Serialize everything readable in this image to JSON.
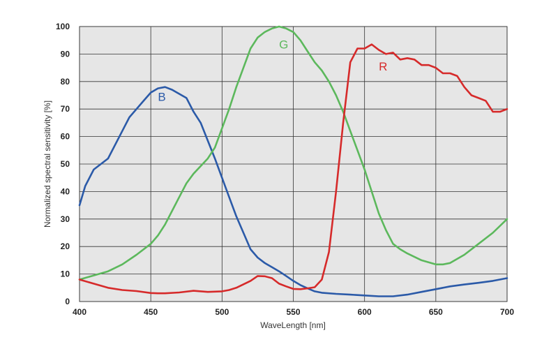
{
  "chart_data": {
    "type": "line",
    "xlabel": "WaveLength [nm]",
    "ylabel": "Normalized spectral sensitivity [%]",
    "xlim": [
      400,
      700
    ],
    "ylim": [
      0,
      100
    ],
    "xticks": [
      400,
      450,
      500,
      550,
      600,
      650,
      700
    ],
    "yticks": [
      0,
      10,
      20,
      30,
      40,
      50,
      60,
      70,
      80,
      90,
      100
    ],
    "grid": true,
    "plot_background": "#e6e6e6",
    "series": [
      {
        "name": "B",
        "color": "#2b5aa8",
        "label_at": [
          455,
          73
        ],
        "points": [
          [
            400,
            35
          ],
          [
            404,
            42
          ],
          [
            410,
            48
          ],
          [
            420,
            52
          ],
          [
            430,
            62
          ],
          [
            435,
            67
          ],
          [
            440,
            70
          ],
          [
            445,
            73
          ],
          [
            450,
            76
          ],
          [
            455,
            77.5
          ],
          [
            460,
            78
          ],
          [
            465,
            77
          ],
          [
            470,
            75.5
          ],
          [
            475,
            74
          ],
          [
            480,
            69
          ],
          [
            485,
            65
          ],
          [
            490,
            58.5
          ],
          [
            495,
            52
          ],
          [
            500,
            45
          ],
          [
            505,
            38
          ],
          [
            510,
            31
          ],
          [
            515,
            25
          ],
          [
            520,
            19
          ],
          [
            525,
            16
          ],
          [
            530,
            14
          ],
          [
            535,
            12.5
          ],
          [
            540,
            11
          ],
          [
            545,
            9.3
          ],
          [
            550,
            7.5
          ],
          [
            555,
            6
          ],
          [
            560,
            4.8
          ],
          [
            565,
            3.7
          ],
          [
            570,
            3.2
          ],
          [
            580,
            2.8
          ],
          [
            590,
            2.5
          ],
          [
            600,
            2.2
          ],
          [
            610,
            1.9
          ],
          [
            620,
            1.9
          ],
          [
            630,
            2.5
          ],
          [
            640,
            3.5
          ],
          [
            650,
            4.5
          ],
          [
            660,
            5.5
          ],
          [
            670,
            6.2
          ],
          [
            680,
            6.8
          ],
          [
            690,
            7.5
          ],
          [
            700,
            8.5
          ]
        ]
      },
      {
        "name": "G",
        "color": "#5cb85c",
        "label_at": [
          540,
          92
        ],
        "points": [
          [
            400,
            8
          ],
          [
            410,
            9.5
          ],
          [
            420,
            11
          ],
          [
            430,
            13.5
          ],
          [
            440,
            17
          ],
          [
            450,
            21
          ],
          [
            455,
            24
          ],
          [
            460,
            28
          ],
          [
            465,
            33
          ],
          [
            470,
            38
          ],
          [
            475,
            43
          ],
          [
            480,
            46.5
          ],
          [
            490,
            52
          ],
          [
            495,
            56
          ],
          [
            500,
            63
          ],
          [
            505,
            70
          ],
          [
            510,
            78
          ],
          [
            515,
            85
          ],
          [
            520,
            92
          ],
          [
            525,
            96
          ],
          [
            530,
            98
          ],
          [
            535,
            99.3
          ],
          [
            540,
            100
          ],
          [
            545,
            99.3
          ],
          [
            550,
            98
          ],
          [
            555,
            95
          ],
          [
            560,
            91
          ],
          [
            565,
            87
          ],
          [
            570,
            84
          ],
          [
            575,
            80
          ],
          [
            580,
            75
          ],
          [
            585,
            69
          ],
          [
            590,
            62
          ],
          [
            595,
            55
          ],
          [
            600,
            48
          ],
          [
            605,
            40
          ],
          [
            610,
            32
          ],
          [
            615,
            26
          ],
          [
            620,
            21
          ],
          [
            625,
            19
          ],
          [
            630,
            17.5
          ],
          [
            640,
            15
          ],
          [
            650,
            13.5
          ],
          [
            655,
            13.5
          ],
          [
            660,
            14
          ],
          [
            670,
            17
          ],
          [
            680,
            21
          ],
          [
            690,
            25
          ],
          [
            700,
            30
          ]
        ]
      },
      {
        "name": "R",
        "color": "#d62a2a",
        "label_at": [
          610,
          84
        ],
        "points": [
          [
            400,
            8
          ],
          [
            410,
            6.5
          ],
          [
            420,
            5
          ],
          [
            430,
            4.2
          ],
          [
            440,
            3.8
          ],
          [
            450,
            3.1
          ],
          [
            455,
            3
          ],
          [
            460,
            3
          ],
          [
            470,
            3.3
          ],
          [
            480,
            3.9
          ],
          [
            490,
            3.5
          ],
          [
            500,
            3.7
          ],
          [
            505,
            4.2
          ],
          [
            510,
            5
          ],
          [
            520,
            7.5
          ],
          [
            525,
            9.3
          ],
          [
            530,
            9.2
          ],
          [
            535,
            8.5
          ],
          [
            540,
            6.5
          ],
          [
            545,
            5.5
          ],
          [
            550,
            4.6
          ],
          [
            555,
            4.5
          ],
          [
            560,
            4.8
          ],
          [
            565,
            5.2
          ],
          [
            570,
            8
          ],
          [
            575,
            18
          ],
          [
            580,
            40
          ],
          [
            585,
            65
          ],
          [
            590,
            87
          ],
          [
            595,
            92
          ],
          [
            600,
            92
          ],
          [
            605,
            93.5
          ],
          [
            610,
            91.5
          ],
          [
            615,
            90
          ],
          [
            620,
            90.5
          ],
          [
            625,
            88
          ],
          [
            630,
            88.5
          ],
          [
            635,
            88
          ],
          [
            640,
            86
          ],
          [
            645,
            86
          ],
          [
            650,
            85
          ],
          [
            655,
            83
          ],
          [
            660,
            83
          ],
          [
            665,
            82
          ],
          [
            670,
            78
          ],
          [
            675,
            75
          ],
          [
            680,
            74
          ],
          [
            685,
            73
          ],
          [
            690,
            69
          ],
          [
            695,
            69
          ],
          [
            700,
            70
          ]
        ]
      }
    ]
  }
}
